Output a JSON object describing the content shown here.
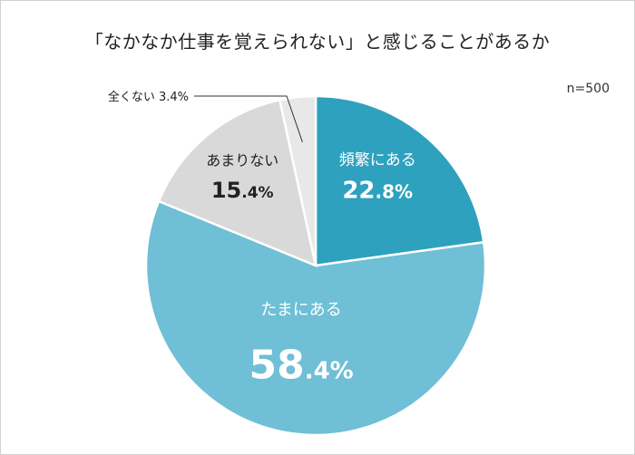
{
  "title": "「なかなか仕事を覚えられない」と感じることがあるか",
  "sample_size": "n=500",
  "chart_data": {
    "type": "pie",
    "title": "「なかなか仕事を覚えられない」と感じることがあるか",
    "slices": [
      {
        "label": "頻繁にある",
        "value": 22.8,
        "value_main": "22",
        "value_sub": ".8%",
        "color": "#2ea1be",
        "text_color": "#ffffff"
      },
      {
        "label": "たまにある",
        "value": 58.4,
        "value_main": "58",
        "value_sub": ".4%",
        "color": "#6fbfd6",
        "text_color": "#ffffff"
      },
      {
        "label": "あまりない",
        "value": 15.4,
        "value_main": "15",
        "value_sub": ".4%",
        "color": "#d9d9d9",
        "text_color": "#222222"
      },
      {
        "label": "全くない",
        "value": 3.4,
        "value_text": "3.4%",
        "color": "#e8e8e8",
        "text_color": "#222222"
      }
    ]
  }
}
